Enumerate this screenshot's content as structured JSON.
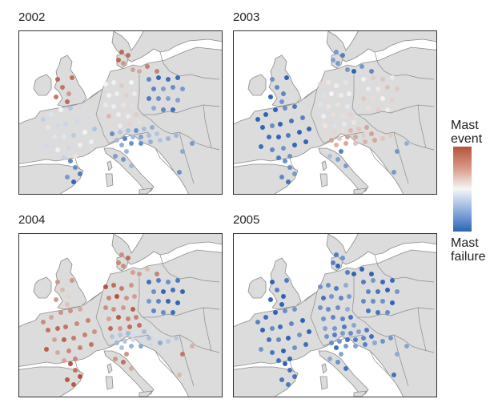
{
  "panels": [
    {
      "year": "2002"
    },
    {
      "year": "2003"
    },
    {
      "year": "2004"
    },
    {
      "year": "2005"
    }
  ],
  "legend": {
    "top_label": "Mast\nevent",
    "bottom_label": "Mast\nfailure",
    "high_color": "#b4543c",
    "mid_color": "#f6f6f6",
    "low_color": "#2e64b4"
  },
  "map_colors": {
    "sea": "#ffffff",
    "land": "#dcdcdc",
    "border": "#8c8c8c"
  },
  "site_values": {
    "2002": {
      "france": -0.1,
      "germany": 0.15,
      "czechia": -0.75,
      "alps": -0.55,
      "uk": 0.7,
      "iberia": -0.75,
      "italy": -0.5,
      "baltic": 0.6,
      "denmark": 0.75
    },
    "2003": {
      "france": -0.9,
      "germany": 0.05,
      "czechia": 0.1,
      "alps": 0.4,
      "uk": -0.85,
      "iberia": -0.85,
      "italy": -0.6,
      "baltic": -0.8,
      "denmark": -0.8
    },
    "2004": {
      "france": 0.7,
      "germany": 0.75,
      "czechia": -0.85,
      "alps": -0.35,
      "uk": 0.4,
      "iberia": 0.85,
      "italy": 0.6,
      "baltic": 0.5,
      "denmark": 0.6
    },
    "2005": {
      "france": -0.9,
      "germany": -0.7,
      "czechia": -0.85,
      "alps": -0.75,
      "uk": -0.9,
      "iberia": -0.9,
      "italy": -0.7,
      "baltic": -0.8,
      "denmark": -0.8
    }
  }
}
